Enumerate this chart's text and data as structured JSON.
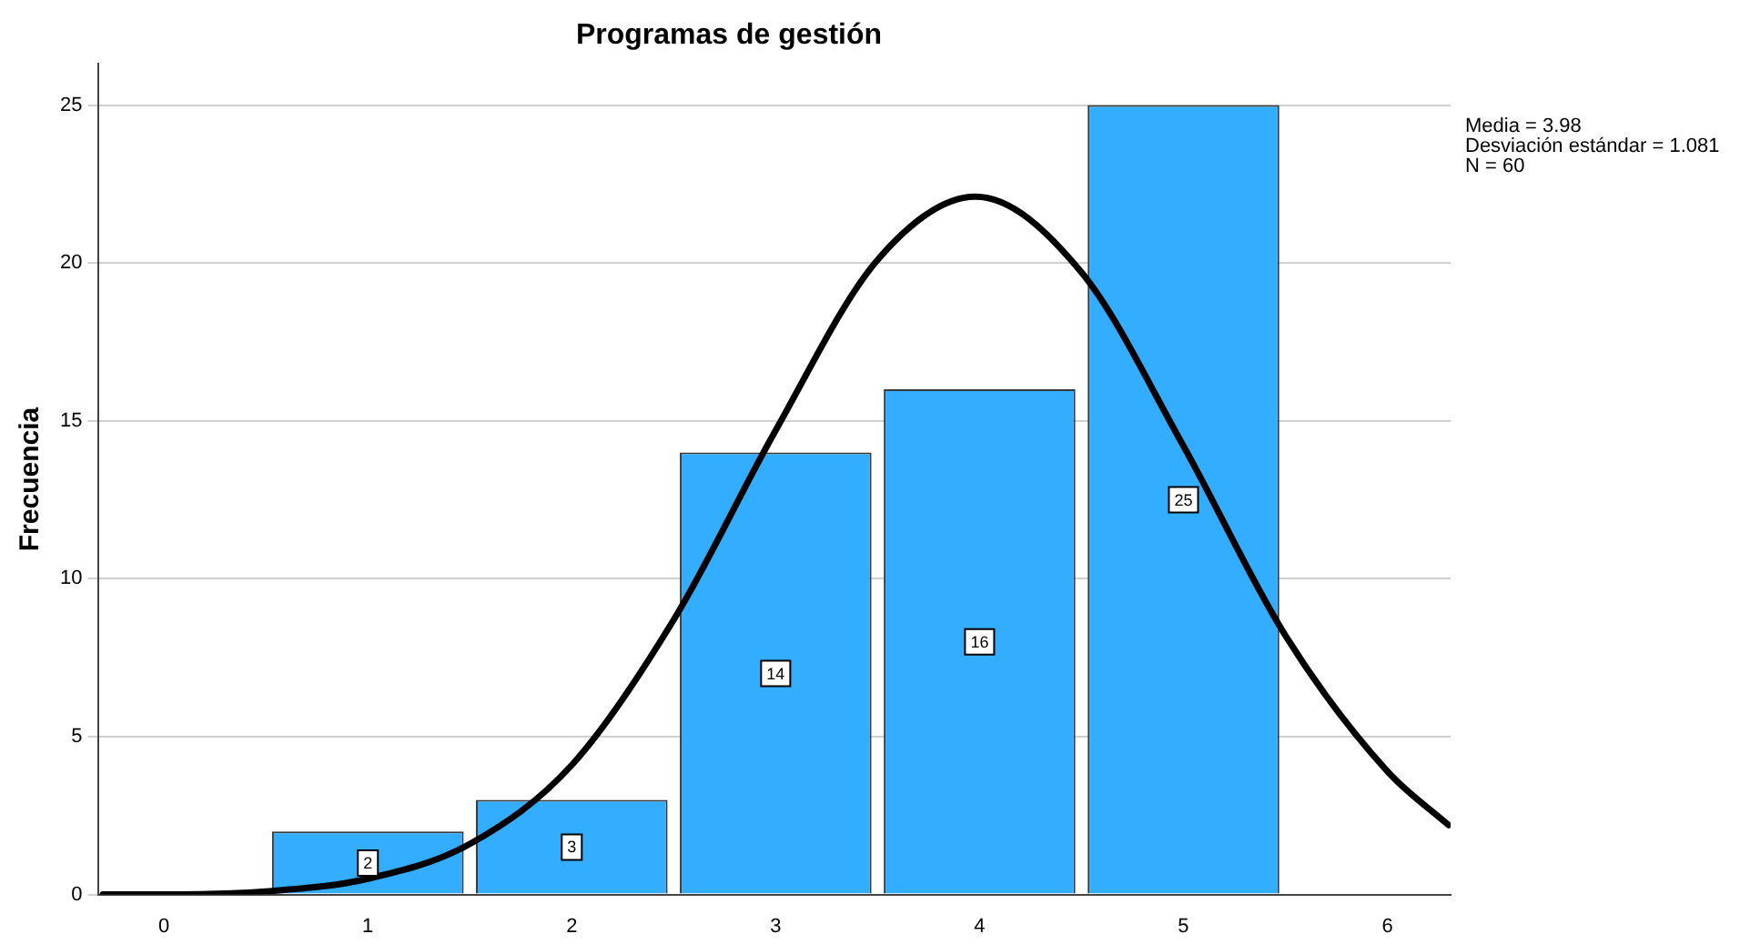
{
  "chart_data": {
    "type": "histogram",
    "title": "Programas de gestión",
    "ylabel": "Frecuencia",
    "bins": [
      0.5,
      1.5,
      2.5,
      3.5,
      4.5,
      5.5
    ],
    "values": [
      2,
      3,
      14,
      16,
      25
    ],
    "color": "#33adff",
    "value_labels": [
      "2",
      "3",
      "14",
      "16",
      "25"
    ],
    "series": [
      {
        "type": "line",
        "color": "#000000",
        "x": [
          -0.3,
          0,
          0.5,
          1,
          1.5,
          2,
          2.5,
          3,
          3.5,
          3.98,
          4.5,
          5,
          5.5,
          6,
          6.3
        ],
        "values": [
          0,
          0,
          0.1,
          0.5,
          1.6,
          4.1,
          8.7,
          14.7,
          20.1,
          22.1,
          19.7,
          14.2,
          8.2,
          3.9,
          2.2
        ]
      }
    ],
    "xlim": [
      -0.32,
      6.31
    ],
    "xticks": [
      0,
      1,
      2,
      3,
      4,
      5,
      6
    ],
    "ylim": [
      0,
      26.3
    ],
    "yticks": [
      0,
      5,
      10,
      15,
      20,
      25
    ],
    "grid": "y",
    "legend": false,
    "annotations": [
      "Media = 3.98",
      "Desviación estándar = 1.081",
      "N = 60"
    ]
  }
}
